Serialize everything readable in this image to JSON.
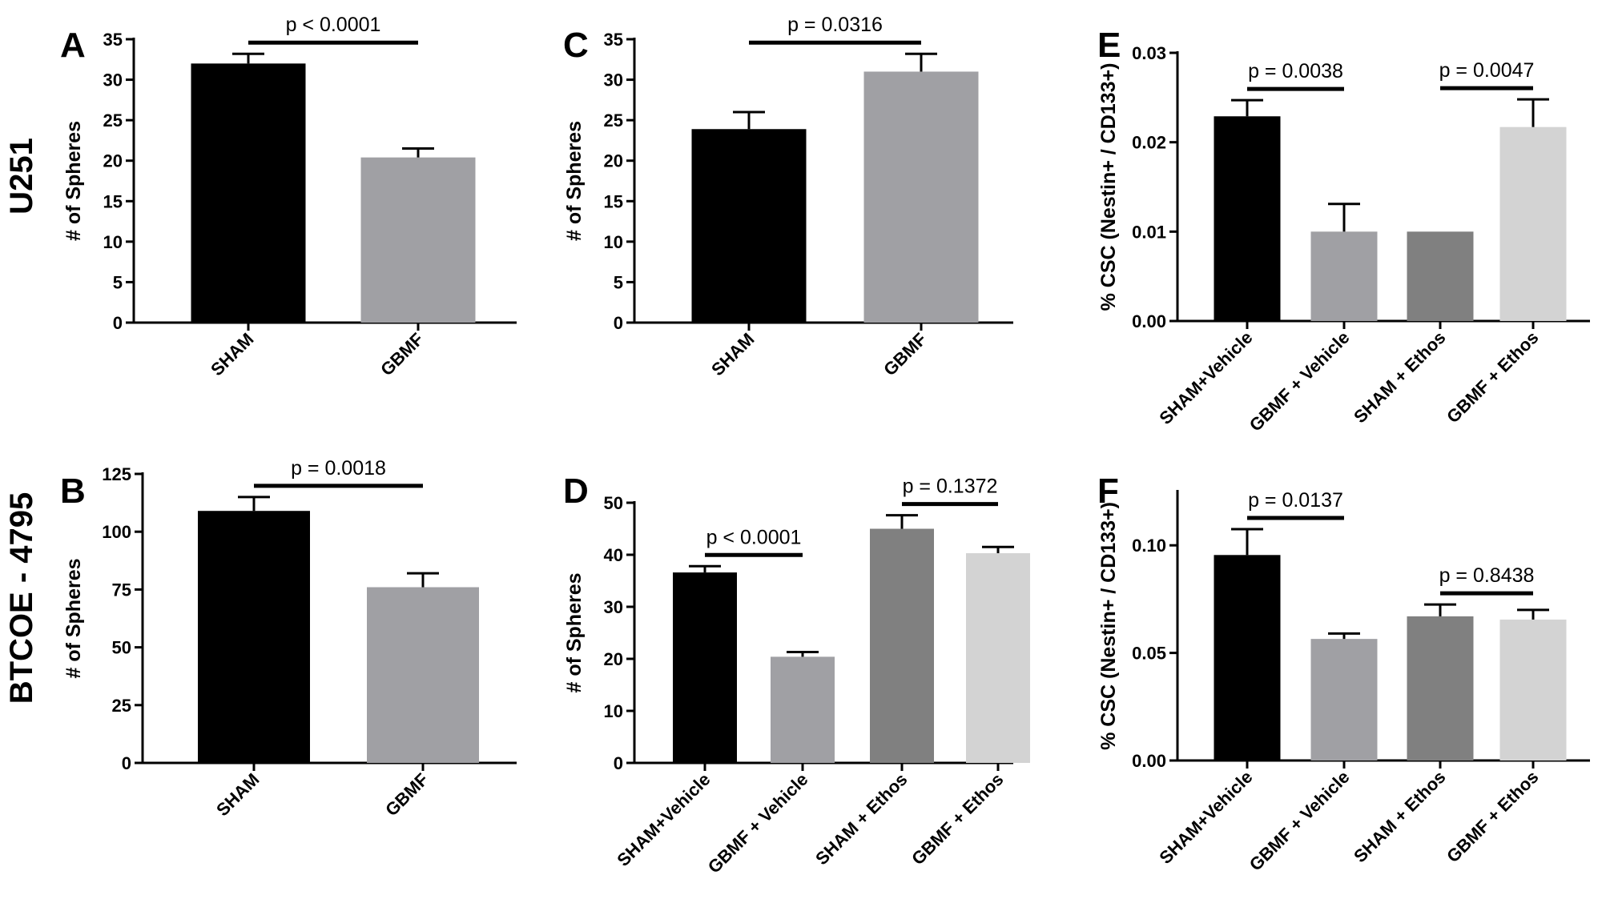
{
  "row_labels": [
    "U251",
    "BTCOE - 4795"
  ],
  "chart_data": [
    {
      "panel": "A",
      "type": "bar",
      "title": "",
      "xlabel": "",
      "ylabel": "# of Spheres",
      "ylim": [
        0,
        35
      ],
      "yticks": [
        "0",
        "5",
        "10",
        "15",
        "20",
        "25",
        "30",
        "35"
      ],
      "categories": [
        "SHAM",
        "GBMF"
      ],
      "values": [
        32.0,
        20.4
      ],
      "errors": [
        1.2,
        1.1
      ],
      "colors": [
        "#000000",
        "#a0a0a4"
      ],
      "comparisons": [
        {
          "from": 0,
          "to": 1,
          "label": "p < 0.0001"
        }
      ],
      "grid": false
    },
    {
      "panel": "B",
      "type": "bar",
      "title": "",
      "xlabel": "",
      "ylabel": "# of Spheres",
      "ylim": [
        0,
        125
      ],
      "yticks": [
        "0",
        "25",
        "50",
        "75",
        "100",
        "125"
      ],
      "categories": [
        "SHAM",
        "GBMF"
      ],
      "values": [
        109,
        76
      ],
      "errors": [
        6,
        6
      ],
      "colors": [
        "#000000",
        "#a0a0a4"
      ],
      "comparisons": [
        {
          "from": 0,
          "to": 1,
          "label": "p = 0.0018"
        }
      ],
      "grid": false
    },
    {
      "panel": "C",
      "type": "bar",
      "title": "",
      "xlabel": "",
      "ylabel": "# of Spheres",
      "ylim": [
        0,
        35
      ],
      "yticks": [
        "0",
        "5",
        "10",
        "15",
        "20",
        "25",
        "30",
        "35"
      ],
      "categories": [
        "SHAM",
        "GBMF"
      ],
      "values": [
        23.9,
        31.0
      ],
      "errors": [
        2.1,
        2.2
      ],
      "colors": [
        "#000000",
        "#a0a0a4"
      ],
      "comparisons": [
        {
          "from": 0,
          "to": 1,
          "label": "p = 0.0316"
        }
      ],
      "grid": false
    },
    {
      "panel": "D",
      "type": "bar",
      "title": "",
      "xlabel": "",
      "ylabel": "# of Spheres",
      "ylim": [
        0,
        50
      ],
      "yticks": [
        "0",
        "10",
        "20",
        "30",
        "40",
        "50"
      ],
      "categories": [
        "SHAM+Vehicle",
        "GBMF + Vehicle",
        "SHAM + Ethos",
        "GBMF + Ethos"
      ],
      "values": [
        36.6,
        20.4,
        45.0,
        40.3
      ],
      "errors": [
        1.2,
        0.9,
        2.6,
        1.2
      ],
      "colors": [
        "#000000",
        "#a0a0a4",
        "#808080",
        "#d3d3d3"
      ],
      "comparisons": [
        {
          "from": 0,
          "to": 1,
          "label": "p < 0.0001"
        },
        {
          "from": 2,
          "to": 3,
          "label": "p = 0.1372"
        }
      ],
      "grid": false
    },
    {
      "panel": "E",
      "type": "bar",
      "title": "",
      "xlabel": "",
      "ylabel": "% CSC (Nestin+ / CD133+)",
      "ylim": [
        0,
        0.03
      ],
      "yticks": [
        "0.00",
        "0.01",
        "0.02",
        "0.03"
      ],
      "categories": [
        "SHAM+Vehicle",
        "GBMF + Vehicle",
        "SHAM + Ethos",
        "GBMF + Ethos"
      ],
      "values": [
        0.0229,
        0.01,
        0.01,
        0.0217
      ],
      "errors": [
        0.0018,
        0.0031,
        0.0,
        0.0031
      ],
      "colors": [
        "#000000",
        "#a0a0a4",
        "#808080",
        "#d3d3d3"
      ],
      "comparisons": [
        {
          "from": 0,
          "to": 1,
          "label": "p = 0.0038"
        },
        {
          "from": 2,
          "to": 3,
          "label": "p = 0.0047"
        }
      ],
      "grid": false
    },
    {
      "panel": "F",
      "type": "bar",
      "title": "",
      "xlabel": "",
      "ylabel": "% CSC (Nestin+ / CD133+)",
      "ylim": [
        0,
        0.125
      ],
      "yticks": [
        "0.00",
        "0.05",
        "0.10"
      ],
      "ytick_values": [
        0,
        0.05,
        0.1
      ],
      "categories": [
        "SHAM+Vehicle",
        "GBMF + Vehicle",
        "SHAM + Ethos",
        "GBMF + Ethos"
      ],
      "values": [
        0.0955,
        0.0565,
        0.067,
        0.0655
      ],
      "errors": [
        0.012,
        0.0025,
        0.0055,
        0.0045
      ],
      "colors": [
        "#000000",
        "#a0a0a4",
        "#808080",
        "#d3d3d3"
      ],
      "comparisons": [
        {
          "from": 0,
          "to": 1,
          "label": "p = 0.0137"
        },
        {
          "from": 2,
          "to": 3,
          "label": "p = 0.8438"
        }
      ],
      "grid": false
    }
  ]
}
